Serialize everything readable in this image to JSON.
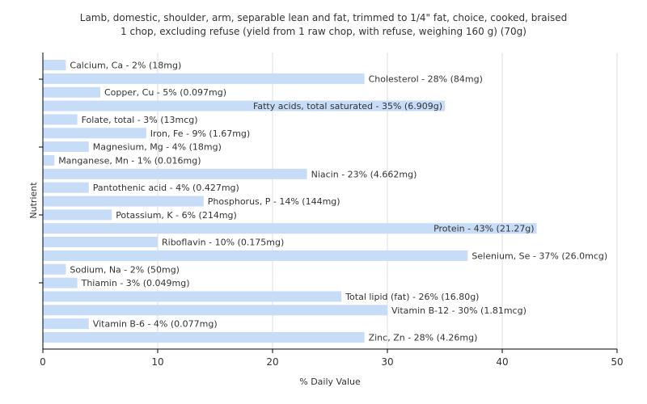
{
  "title_line1": "Lamb, domestic, shoulder, arm, separable lean and fat, trimmed to 1/4\" fat, choice, cooked, braised",
  "title_line2": "1 chop, excluding refuse (yield from 1 raw chop, with refuse, weighing 160 g) (70g)",
  "colors": {
    "bar": "#c6dcf7",
    "grid": "#dddddd",
    "axis": "#000000",
    "text": "#333333"
  },
  "chart_data": {
    "type": "bar",
    "orientation": "horizontal",
    "xlabel": "% Daily Value",
    "ylabel": "Nutrient",
    "xlim": [
      0,
      50
    ],
    "xticks": [
      0,
      10,
      20,
      30,
      40,
      50
    ],
    "grid": true,
    "categories": [
      "Calcium, Ca",
      "Cholesterol",
      "Copper, Cu",
      "Fatty acids, total saturated",
      "Folate, total",
      "Iron, Fe",
      "Magnesium, Mg",
      "Manganese, Mn",
      "Niacin",
      "Pantothenic acid",
      "Phosphorus, P",
      "Potassium, K",
      "Protein",
      "Riboflavin",
      "Selenium, Se",
      "Sodium, Na",
      "Thiamin",
      "Total lipid (fat)",
      "Vitamin B-12",
      "Vitamin B-6",
      "Zinc, Zn"
    ],
    "values": [
      2,
      28,
      5,
      35,
      3,
      9,
      4,
      1,
      23,
      4,
      14,
      6,
      43,
      10,
      37,
      2,
      3,
      26,
      30,
      4,
      28
    ],
    "labels": [
      "Calcium, Ca - 2% (18mg)",
      "Cholesterol - 28% (84mg)",
      "Copper, Cu - 5% (0.097mg)",
      "Fatty acids, total saturated - 35% (6.909g)",
      "Folate, total - 3% (13mcg)",
      "Iron, Fe - 9% (1.67mg)",
      "Magnesium, Mg - 4% (18mg)",
      "Manganese, Mn - 1% (0.016mg)",
      "Niacin - 23% (4.662mg)",
      "Pantothenic acid - 4% (0.427mg)",
      "Phosphorus, P - 14% (144mg)",
      "Potassium, K - 6% (214mg)",
      "Protein - 43% (21.27g)",
      "Riboflavin - 10% (0.175mg)",
      "Selenium, Se - 37% (26.0mcg)",
      "Sodium, Na - 2% (50mg)",
      "Thiamin - 3% (0.049mg)",
      "Total lipid (fat) - 26% (16.80g)",
      "Vitamin B-12 - 30% (1.81mcg)",
      "Vitamin B-6 - 4% (0.077mg)",
      "Zinc, Zn - 28% (4.26mg)"
    ]
  }
}
